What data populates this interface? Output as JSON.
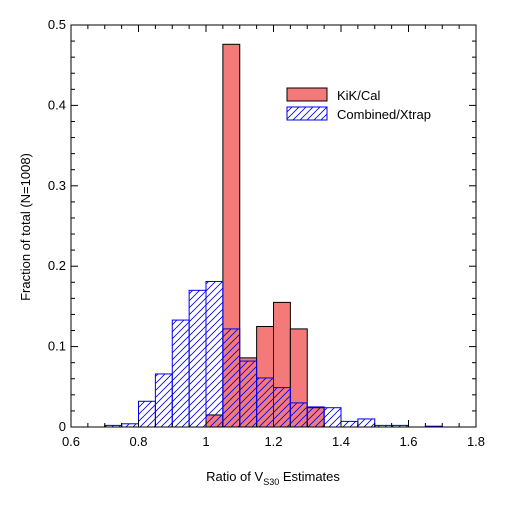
{
  "chart_data": {
    "type": "bar",
    "subtype": "overlaid histogram",
    "xlabel_prefix": "Ratio of V",
    "xlabel_subscript": "S30",
    "xlabel_suffix": " Estimates",
    "ylabel": "Fraction of total (N=1008)",
    "xlim": [
      0.6,
      1.8
    ],
    "ylim": [
      0,
      0.5
    ],
    "x_ticks": [
      "0.6",
      "0.8",
      "1",
      "1.2",
      "1.4",
      "1.6",
      "1.8"
    ],
    "y_ticks": [
      "0",
      "0.1",
      "0.2",
      "0.3",
      "0.4",
      "0.5"
    ],
    "bin_width": 0.05,
    "legend_position": "top-right",
    "grid": false,
    "series": [
      {
        "name": "KiK/Cal",
        "style": "solid",
        "color": "#f47a7a",
        "bins": [
          {
            "x0": 1.0,
            "x1": 1.05,
            "value": 0.015
          },
          {
            "x0": 1.05,
            "x1": 1.1,
            "value": 0.476
          },
          {
            "x0": 1.1,
            "x1": 1.15,
            "value": 0.086
          },
          {
            "x0": 1.15,
            "x1": 1.2,
            "value": 0.125
          },
          {
            "x0": 1.2,
            "x1": 1.25,
            "value": 0.155
          },
          {
            "x0": 1.25,
            "x1": 1.3,
            "value": 0.122
          },
          {
            "x0": 1.3,
            "x1": 1.35,
            "value": 0.024
          }
        ]
      },
      {
        "name": "Combined/Xtrap",
        "style": "hatched",
        "color": "#0000ee",
        "bins": [
          {
            "x0": 0.7,
            "x1": 0.75,
            "value": 0.002
          },
          {
            "x0": 0.75,
            "x1": 0.8,
            "value": 0.004
          },
          {
            "x0": 0.8,
            "x1": 0.85,
            "value": 0.032
          },
          {
            "x0": 0.85,
            "x1": 0.9,
            "value": 0.066
          },
          {
            "x0": 0.9,
            "x1": 0.95,
            "value": 0.133
          },
          {
            "x0": 0.95,
            "x1": 1.0,
            "value": 0.17
          },
          {
            "x0": 1.0,
            "x1": 1.05,
            "value": 0.181
          },
          {
            "x0": 1.05,
            "x1": 1.1,
            "value": 0.122
          },
          {
            "x0": 1.1,
            "x1": 1.15,
            "value": 0.082
          },
          {
            "x0": 1.15,
            "x1": 1.2,
            "value": 0.061
          },
          {
            "x0": 1.2,
            "x1": 1.25,
            "value": 0.049
          },
          {
            "x0": 1.25,
            "x1": 1.3,
            "value": 0.03
          },
          {
            "x0": 1.3,
            "x1": 1.35,
            "value": 0.025
          },
          {
            "x0": 1.35,
            "x1": 1.4,
            "value": 0.024
          },
          {
            "x0": 1.4,
            "x1": 1.45,
            "value": 0.007
          },
          {
            "x0": 1.45,
            "x1": 1.5,
            "value": 0.01
          },
          {
            "x0": 1.5,
            "x1": 1.55,
            "value": 0.002
          },
          {
            "x0": 1.55,
            "x1": 1.6,
            "value": 0.002
          },
          {
            "x0": 1.65,
            "x1": 1.7,
            "value": 0.001
          }
        ]
      }
    ]
  }
}
